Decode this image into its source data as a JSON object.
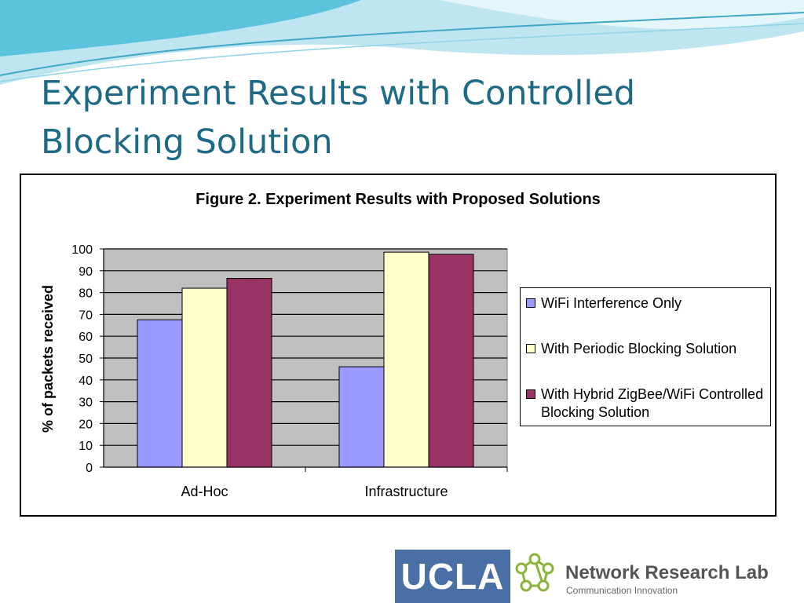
{
  "slide": {
    "title": "Experiment Results with Controlled Blocking Solution"
  },
  "chart_data": {
    "type": "bar",
    "title": "Figure 2. Experiment Results with Proposed Solutions",
    "xlabel": "",
    "ylabel": "% of packets received",
    "ylim": [
      0,
      100
    ],
    "yticks": [
      0,
      10,
      20,
      30,
      40,
      50,
      60,
      70,
      80,
      90,
      100
    ],
    "categories": [
      "Ad-Hoc",
      "Infrastructure"
    ],
    "series": [
      {
        "name": "WiFi Interference Only",
        "color": "#9999ff",
        "values": [
          67.5,
          46
        ]
      },
      {
        "name": "With Periodic Blocking Solution",
        "color": "#ffffcc",
        "values": [
          82,
          98.5
        ]
      },
      {
        "name": "With Hybrid ZigBee/WiFi Controlled Blocking Solution",
        "color": "#993366",
        "values": [
          86.5,
          97.5
        ]
      }
    ],
    "grid": true,
    "plot_background": "#c0c0c0",
    "legend_position": "right"
  },
  "logos": {
    "ucla": "UCLA",
    "nrl_title": "Network Research Lab",
    "nrl_subtitle": "Communication Innovation"
  }
}
